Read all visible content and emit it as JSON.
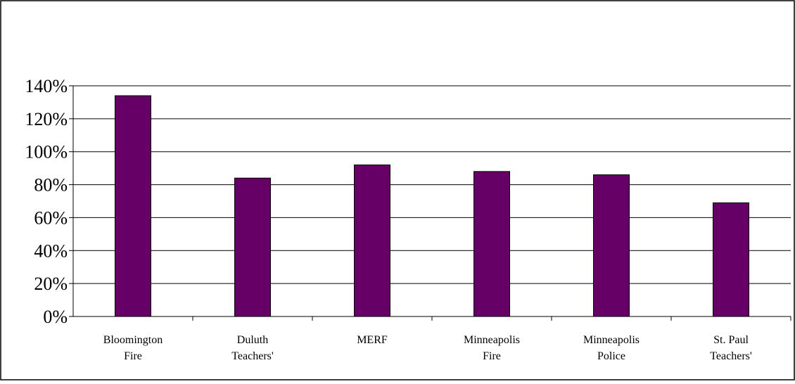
{
  "chart_data": {
    "type": "bar",
    "title": "",
    "xlabel": "",
    "ylabel": "",
    "categories": [
      [
        "Bloomington",
        "Fire"
      ],
      [
        "Duluth",
        "Teachers'"
      ],
      [
        "MERF"
      ],
      [
        "Minneapolis",
        "Fire"
      ],
      [
        "Minneapolis",
        "Police"
      ],
      [
        "St. Paul",
        "Teachers'"
      ]
    ],
    "values": [
      134,
      84,
      92,
      88,
      86,
      69
    ],
    "ylim": [
      0,
      140
    ],
    "yticks": [
      0,
      20,
      40,
      60,
      80,
      100,
      120,
      140
    ],
    "ytick_labels": [
      "0%",
      "20%",
      "40%",
      "60%",
      "80%",
      "100%",
      "120%",
      "140%"
    ],
    "grid": "horizontal",
    "legend": "none",
    "colors": {
      "bar_fill": "#660066",
      "bar_stroke": "#000000",
      "axis": "#000000",
      "grid": "#000000",
      "frame": "#000000"
    }
  }
}
